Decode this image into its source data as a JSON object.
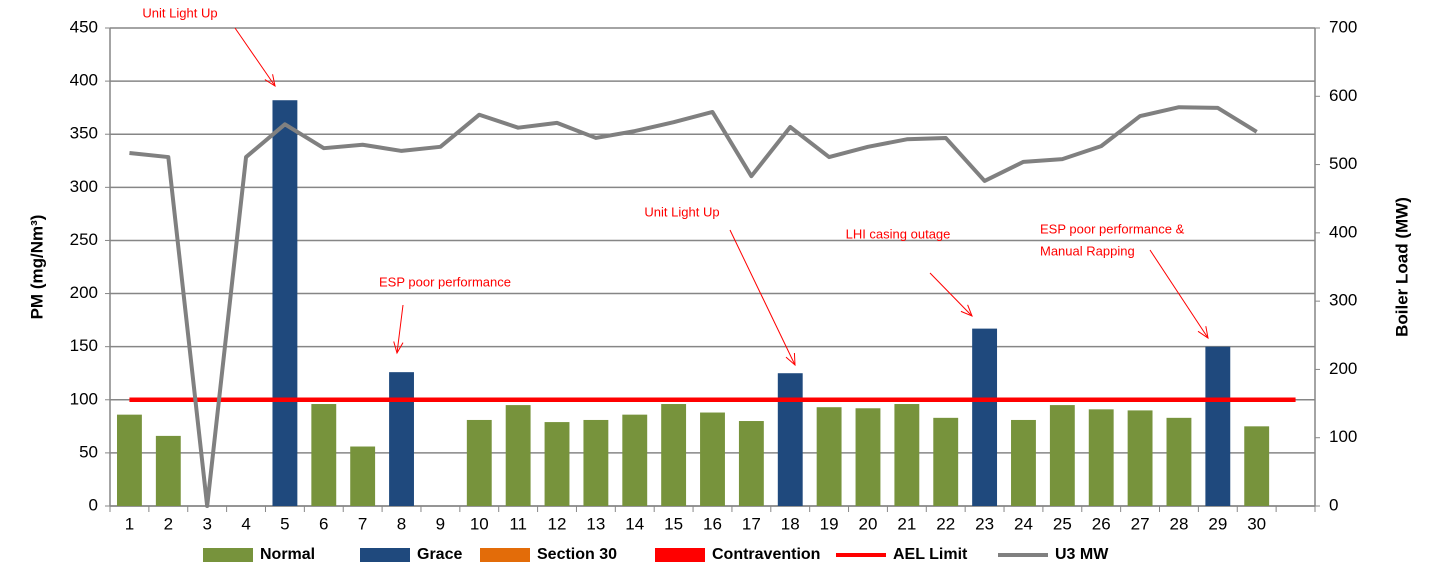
{
  "chart_data": {
    "type": "bar",
    "ylabel": "PM (mg/Nm³)",
    "y2label": "Boiler Load (MW)",
    "categories": [
      "1",
      "2",
      "3",
      "4",
      "5",
      "6",
      "7",
      "8",
      "9",
      "10",
      "11",
      "12",
      "13",
      "14",
      "15",
      "16",
      "17",
      "18",
      "19",
      "20",
      "21",
      "22",
      "23",
      "24",
      "25",
      "26",
      "27",
      "28",
      "29",
      "30",
      null
    ],
    "ylim": [
      0,
      450
    ],
    "yticks": [
      0,
      50,
      100,
      150,
      200,
      250,
      300,
      350,
      400,
      450
    ],
    "y2lim": [
      0,
      700
    ],
    "y2ticks": [
      0,
      100,
      200,
      300,
      400,
      500,
      600,
      700
    ],
    "grid": true,
    "legend": "bottom",
    "series": [
      {
        "name": "Normal",
        "type": "bar",
        "color": "#77933c",
        "values": [
          86,
          66,
          null,
          null,
          null,
          96,
          56,
          null,
          null,
          81,
          95,
          79,
          81,
          86,
          96,
          88,
          80,
          null,
          93,
          92,
          96,
          83,
          null,
          81,
          95,
          91,
          90,
          83,
          null,
          75,
          null
        ]
      },
      {
        "name": "Grace",
        "type": "bar",
        "color": "#1f497d",
        "values": [
          null,
          null,
          null,
          null,
          382,
          null,
          null,
          126,
          null,
          null,
          null,
          null,
          null,
          null,
          null,
          null,
          null,
          125,
          null,
          null,
          null,
          null,
          167,
          null,
          null,
          null,
          null,
          null,
          150,
          null,
          null
        ]
      },
      {
        "name": "Section 30",
        "type": "bar",
        "color": "#e36c09",
        "values": [
          null,
          null,
          null,
          null,
          null,
          null,
          null,
          null,
          null,
          null,
          null,
          null,
          null,
          null,
          null,
          null,
          null,
          null,
          null,
          null,
          null,
          null,
          null,
          null,
          null,
          null,
          null,
          null,
          null,
          null,
          null
        ]
      },
      {
        "name": "Contravention",
        "type": "bar",
        "color": "#ff0000",
        "values": [
          null,
          null,
          null,
          null,
          null,
          null,
          null,
          null,
          null,
          null,
          null,
          null,
          null,
          null,
          null,
          null,
          null,
          null,
          null,
          null,
          null,
          null,
          null,
          null,
          null,
          null,
          null,
          null,
          null,
          null,
          null
        ]
      },
      {
        "name": "AEL Limit",
        "type": "line",
        "color": "#ff0000",
        "values": [
          100,
          100,
          100,
          100,
          100,
          100,
          100,
          100,
          100,
          100,
          100,
          100,
          100,
          100,
          100,
          100,
          100,
          100,
          100,
          100,
          100,
          100,
          100,
          100,
          100,
          100,
          100,
          100,
          100,
          100,
          100
        ]
      },
      {
        "name": "U3 MW",
        "type": "line",
        "color": "#808080",
        "axis": "y2",
        "values": [
          517,
          511,
          0,
          511,
          559,
          524,
          529,
          520,
          526,
          573,
          554,
          561,
          539,
          549,
          562,
          577,
          483,
          555,
          511,
          526,
          537,
          539,
          476,
          504,
          508,
          527,
          571,
          584,
          583,
          548,
          null
        ]
      }
    ],
    "annotations": [
      {
        "lines": [
          "Unit Light Up"
        ]
      },
      {
        "lines": [
          "ESP poor performance"
        ]
      },
      {
        "lines": [
          "Unit Light Up"
        ]
      },
      {
        "lines": [
          "LHI casing outage"
        ]
      },
      {
        "lines": [
          "ESP poor performance &",
          "Manual Rapping"
        ]
      }
    ]
  }
}
